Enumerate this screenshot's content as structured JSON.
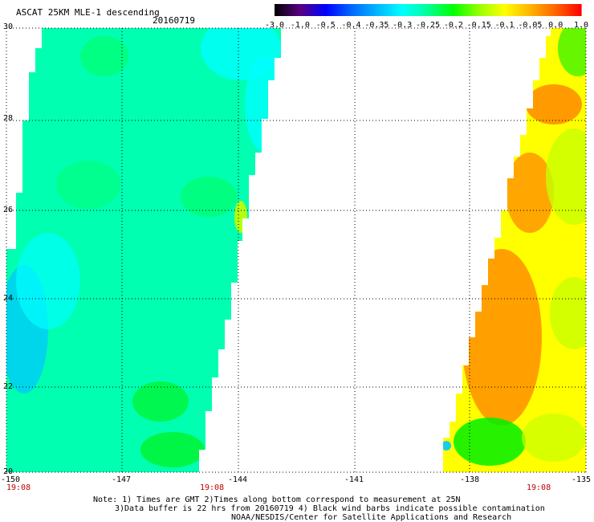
{
  "header": {
    "title": "ASCAT 25KM MLE-1 descending",
    "date": "20160719"
  },
  "colorbar": {
    "labels": [
      "-3.0",
      "-1.0",
      "-0.5",
      "-0.4",
      "-0.35",
      "-0.3",
      "-0.25",
      "-0.2",
      "-0.15",
      "-0.1",
      "-0.05",
      "0.0",
      "1.0"
    ],
    "colors": [
      "#000000",
      "#5a0082",
      "#0000ff",
      "#0066ff",
      "#00b4ff",
      "#00ffff",
      "#00ff96",
      "#00ff00",
      "#96ff00",
      "#ffff00",
      "#ffb400",
      "#ff6400",
      "#ff0000"
    ]
  },
  "map": {
    "lat_labels": [
      "30",
      "28",
      "26",
      "24",
      "22",
      "20"
    ],
    "lon_labels": [
      "-150",
      "-147",
      "-144",
      "-141",
      "-138",
      "-135"
    ],
    "time_labels": [
      "19:08",
      "19:08",
      "19:08"
    ],
    "swath_colors": {
      "cyan": "#00ffff",
      "cyan_green": "#00ffb0",
      "aqua_green": "#00ff78",
      "green": "#00f000",
      "light_blue": "#00c8ff",
      "yellow_green": "#c8ff00",
      "yellow": "#ffff00",
      "orange": "#ff9600",
      "dark_orange": "#ff7800"
    }
  },
  "notes": {
    "line1": "Note: 1) Times are GMT 2)Times along bottom correspond to measurement at 25N",
    "line2": "3)Data buffer is 22 hrs from 20160719 4) Black wind barbs indicate possible contamination",
    "line3": "NOAA/NESDIS/Center for Satellite Applications and Research"
  }
}
